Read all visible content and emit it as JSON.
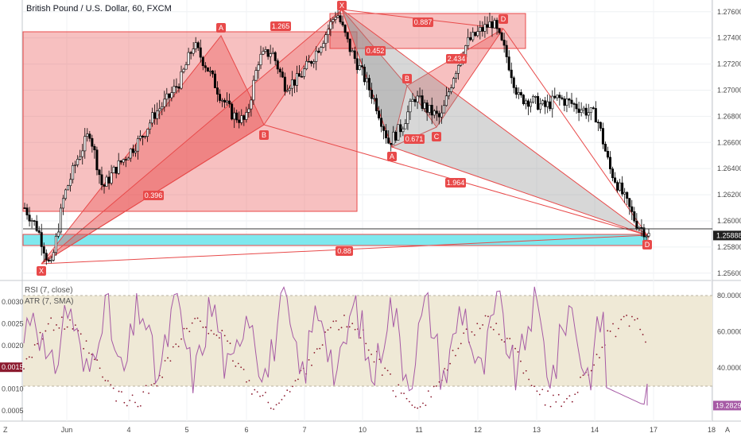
{
  "symbol": {
    "title": "British Pound / U.S. Dollar, 60, FXCM"
  },
  "price_scale": {
    "ticks": [
      "1.27600",
      "1.27400",
      "1.27200",
      "1.27000",
      "1.26800",
      "1.26600",
      "1.26400",
      "1.26200",
      "1.26000",
      "1.25800",
      "1.25600"
    ],
    "current": "1.25888"
  },
  "indicators": {
    "rsi_label": "RSI (7, close)",
    "atr_label": "ATR (7, SMA)",
    "atr_ticks": [
      "0.0030",
      "0.0025",
      "0.0020",
      "0.0010",
      "0.0005"
    ],
    "atr_current": "0.0015",
    "rsi_ticks": [
      "80.0000",
      "60.0000",
      "40.0000"
    ],
    "rsi_current": "19.2829"
  },
  "time_axis": {
    "labels": [
      "Jun",
      "4",
      "5",
      "6",
      "7",
      "10",
      "11",
      "12",
      "13",
      "14",
      "17",
      "18"
    ]
  },
  "pattern_labels": {
    "x1": "X",
    "a1": "A",
    "b1": "B",
    "x2": "X",
    "a2": "A",
    "b2": "B",
    "c2": "C",
    "d2": "D",
    "d3": "D"
  },
  "ratios": {
    "r1": "1.265",
    "r2": "0.887",
    "r3": "0.452",
    "r4": "2.434",
    "r5": "0.396",
    "r6": "0.671",
    "r7": "1.964",
    "r8": "0.88"
  },
  "colors": {
    "bull_bear_candle": "#000000",
    "pattern_red": "#e84a4a",
    "pattern_fill": "rgba(232,74,74,0.35)",
    "xabcd_fill": "rgba(128,128,128,0.35)",
    "target_zone": "#7fe8ee",
    "rsi_line": "#a65aa5",
    "atr_dots": "#8b1a2e",
    "rsi_band": "#efe9d6"
  },
  "chart_data": {
    "type": "candlestick",
    "title": "British Pound / U.S. Dollar, 60, FXCM",
    "y_range": [
      1.2555,
      1.2769
    ],
    "x_labels": [
      "Jun",
      "4",
      "5",
      "6",
      "7",
      "10",
      "11",
      "12",
      "13",
      "14",
      "17",
      "18"
    ],
    "close_path": [
      1.261,
      1.2594,
      1.2563,
      1.2618,
      1.2646,
      1.2668,
      1.2625,
      1.264,
      1.2652,
      1.2664,
      1.2682,
      1.2693,
      1.2708,
      1.2735,
      1.2718,
      1.2697,
      1.2681,
      1.2676,
      1.2724,
      1.273,
      1.2704,
      1.2708,
      1.2722,
      1.274,
      1.276,
      1.2732,
      1.2712,
      1.269,
      1.266,
      1.2672,
      1.2695,
      1.2685,
      1.2678,
      1.2712,
      1.2736,
      1.2745,
      1.2752,
      1.2728,
      1.2694,
      1.2692,
      1.2687,
      1.2694,
      1.269,
      1.2685,
      1.268,
      1.264,
      1.262,
      1.2599,
      1.2589
    ],
    "last_close": 1.25888,
    "harmonic_pattern_1": {
      "points": [
        "X",
        "A",
        "B"
      ],
      "ratios": [
        "0.396",
        "1.265"
      ]
    },
    "harmonic_pattern_2": {
      "points": [
        "X",
        "A",
        "B",
        "C",
        "D"
      ],
      "ratios": [
        "0.452",
        "0.671",
        "2.434",
        "0.887"
      ]
    },
    "harmonic_pattern_3": {
      "points": [
        "X",
        "A",
        "D"
      ],
      "ratios": [
        "1.964",
        "0.88"
      ]
    },
    "rsi": {
      "label": "RSI (7, close)",
      "last": 19.2829,
      "levels": [
        80,
        60,
        40
      ],
      "band": [
        30,
        80
      ]
    },
    "atr": {
      "label": "ATR (7, SMA)",
      "last": 0.0015
    }
  }
}
